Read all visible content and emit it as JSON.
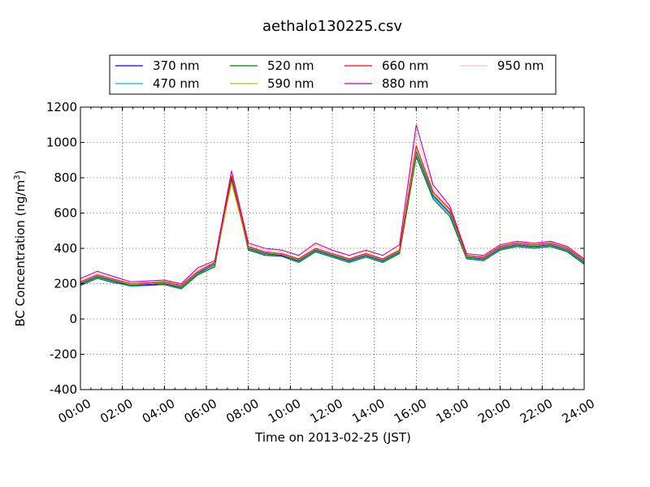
{
  "chart_data": {
    "type": "line",
    "title": "aethalo130225.csv",
    "xlabel": "Time on 2013-02-25 (JST)",
    "ylabel": "BC Concentration (ng/m³)",
    "ylabel_main": "BC Concentration (ng/m",
    "ylabel_sup": "3",
    "ylabel_end": ")",
    "xlim_hours": [
      0,
      24
    ],
    "ylim": [
      -400,
      1200
    ],
    "xticks": [
      "00:00",
      "02:00",
      "04:00",
      "06:00",
      "08:00",
      "10:00",
      "12:00",
      "14:00",
      "16:00",
      "18:00",
      "20:00",
      "22:00",
      "24:00"
    ],
    "yticks": [
      -400,
      -200,
      0,
      200,
      400,
      600,
      800,
      1000,
      1200
    ],
    "grid": true,
    "legend_position": "top",
    "series": [
      {
        "name": "370 nm",
        "color": "#0000ff",
        "values": [
          200,
          240,
          215,
          190,
          195,
          200,
          180,
          260,
          310,
          790,
          400,
          370,
          360,
          330,
          390,
          360,
          330,
          360,
          330,
          380,
          950,
          700,
          600,
          350,
          340,
          400,
          420,
          410,
          420,
          390,
          320
        ]
      },
      {
        "name": "470 nm",
        "color": "#00bfbf",
        "values": [
          195,
          235,
          210,
          185,
          190,
          195,
          175,
          255,
          300,
          780,
          395,
          365,
          355,
          325,
          385,
          355,
          325,
          355,
          325,
          375,
          930,
          690,
          590,
          345,
          335,
          395,
          415,
          405,
          415,
          385,
          315
        ]
      },
      {
        "name": "520 nm",
        "color": "#008000",
        "values": [
          190,
          230,
          205,
          190,
          190,
          195,
          170,
          250,
          295,
          800,
          390,
          360,
          355,
          320,
          380,
          350,
          320,
          350,
          320,
          370,
          920,
          680,
          580,
          340,
          330,
          390,
          410,
          400,
          410,
          380,
          310
        ]
      },
      {
        "name": "590 nm",
        "color": "#bfbf00",
        "values": [
          205,
          245,
          220,
          195,
          200,
          205,
          185,
          265,
          315,
          770,
          405,
          375,
          365,
          335,
          395,
          365,
          335,
          365,
          335,
          385,
          960,
          710,
          610,
          355,
          345,
          405,
          425,
          415,
          425,
          395,
          325
        ]
      },
      {
        "name": "660 nm",
        "color": "#ff0000",
        "values": [
          210,
          250,
          225,
          200,
          205,
          210,
          190,
          270,
          320,
          810,
          410,
          380,
          370,
          340,
          400,
          370,
          340,
          370,
          340,
          390,
          980,
          720,
          620,
          360,
          350,
          410,
          430,
          420,
          430,
          400,
          330
        ]
      },
      {
        "name": "880 nm",
        "color": "#bf00bf",
        "values": [
          230,
          270,
          240,
          210,
          215,
          220,
          200,
          290,
          330,
          840,
          430,
          400,
          390,
          360,
          430,
          390,
          360,
          390,
          360,
          420,
          1100,
          760,
          640,
          370,
          360,
          420,
          440,
          430,
          440,
          410,
          340
        ]
      },
      {
        "name": "950 nm",
        "color": "#ffc0cb",
        "values": [
          220,
          260,
          230,
          200,
          205,
          215,
          195,
          280,
          320,
          820,
          420,
          390,
          380,
          340,
          420,
          380,
          340,
          380,
          340,
          400,
          1050,
          740,
          630,
          360,
          350,
          415,
          435,
          425,
          435,
          405,
          335
        ]
      }
    ]
  }
}
